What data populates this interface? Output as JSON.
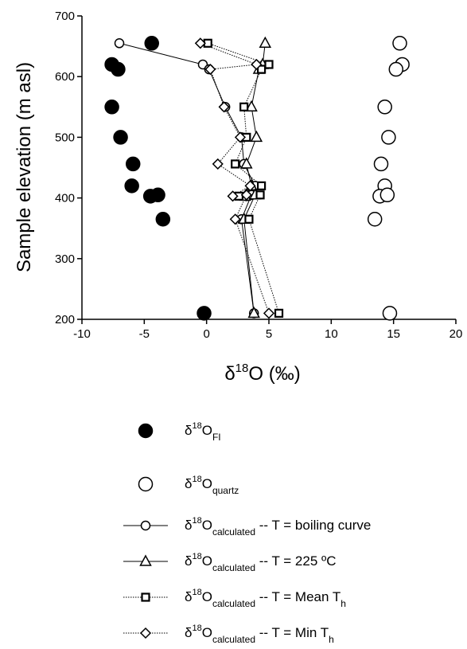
{
  "chart_data": {
    "type": "scatter",
    "y_label": "Sample elevation (m asl)",
    "x_label": [
      "δ",
      "18",
      "O (‰)"
    ],
    "xlim": [
      -10,
      20
    ],
    "xticks": [
      -10,
      -5,
      0,
      5,
      10,
      15,
      20
    ],
    "ylim": [
      200,
      700
    ],
    "yticks": [
      200,
      300,
      400,
      500,
      600,
      700
    ],
    "y": [
      655,
      620,
      612,
      550,
      500,
      456,
      420,
      403,
      405,
      365,
      210
    ],
    "series": [
      {
        "name": [
          "δ",
          "18",
          "O",
          "FI"
        ],
        "marker": "circle",
        "filled": true,
        "line": "none",
        "color": "#000000",
        "x": [
          -4.4,
          -7.6,
          -7.1,
          -7.6,
          -6.9,
          -5.9,
          -6.0,
          -4.5,
          -3.9,
          -3.5,
          -0.2
        ]
      },
      {
        "name": [
          "δ",
          "18",
          "O",
          "quartz"
        ],
        "marker": "circle",
        "filled": false,
        "line": "none",
        "color": "#000000",
        "x": [
          15.5,
          15.7,
          15.2,
          14.3,
          14.6,
          14.0,
          14.3,
          13.9,
          14.5,
          13.5,
          14.7
        ]
      },
      {
        "name": [
          "δ",
          "18",
          "O",
          "calculated",
          " -- T = boiling curve"
        ],
        "marker": "circle-small",
        "filled": false,
        "line": "solid",
        "color": "#000000",
        "x": [
          -7.0,
          -0.3,
          0.2,
          1.5,
          2.8,
          3.0,
          3.9,
          3.2,
          3.6,
          2.8,
          3.8
        ]
      },
      {
        "name": [
          "δ",
          "18",
          "O",
          "calculated",
          " -- T = 225 ºC"
        ],
        "marker": "triangle",
        "filled": false,
        "line": "solid",
        "color": "#000000",
        "x": [
          4.7,
          4.5,
          4.2,
          3.6,
          4.0,
          3.2,
          3.6,
          3.1,
          3.9,
          3.0,
          3.8
        ]
      },
      {
        "name": [
          "δ",
          "18",
          "O",
          "calculated",
          " -- T = Mean T",
          "h"
        ],
        "marker": "square",
        "filled": false,
        "line": "dotted",
        "color": "#000000",
        "x": [
          0.1,
          5.0,
          4.4,
          3.0,
          3.2,
          2.3,
          4.4,
          2.6,
          4.3,
          3.4,
          5.8
        ]
      },
      {
        "name": [
          "δ",
          "18",
          "O",
          "calculated",
          " -- T = Min T",
          "h"
        ],
        "marker": "diamond",
        "filled": false,
        "line": "dotted",
        "color": "#000000",
        "x": [
          -0.5,
          4.0,
          0.3,
          1.4,
          2.7,
          0.9,
          3.5,
          2.1,
          3.2,
          2.3,
          5.0
        ]
      }
    ]
  }
}
